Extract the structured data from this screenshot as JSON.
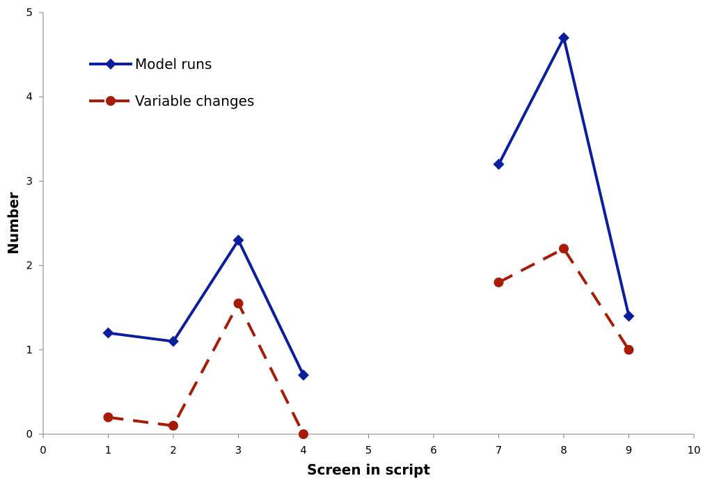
{
  "chart_data": {
    "type": "line",
    "title": "",
    "xlabel": "Screen in script",
    "ylabel": "Number",
    "xlim": [
      0,
      10
    ],
    "ylim": [
      0,
      5
    ],
    "x_ticks": [
      "0",
      "1",
      "2",
      "3",
      "4",
      "5",
      "6",
      "7",
      "8",
      "9",
      "10"
    ],
    "y_ticks": [
      "0",
      "1",
      "2",
      "3",
      "4",
      "5"
    ],
    "grid": false,
    "legend_position": "top-left",
    "series": [
      {
        "name": "Model runs",
        "color": "#0b1f9e",
        "marker": "diamond",
        "line_style": "solid",
        "segments": [
          [
            {
              "x": 1,
              "y": 1.2
            },
            {
              "x": 2,
              "y": 1.1
            },
            {
              "x": 3,
              "y": 2.3
            },
            {
              "x": 4,
              "y": 0.7
            }
          ],
          [
            {
              "x": 7,
              "y": 3.2
            },
            {
              "x": 8,
              "y": 4.7
            },
            {
              "x": 9,
              "y": 1.4
            }
          ]
        ]
      },
      {
        "name": "Variable changes",
        "color": "#a81c07",
        "marker": "circle",
        "line_style": "dashed",
        "segments": [
          [
            {
              "x": 1,
              "y": 0.2
            },
            {
              "x": 2,
              "y": 0.1
            },
            {
              "x": 3,
              "y": 1.55
            },
            {
              "x": 4,
              "y": 0.0
            }
          ],
          [
            {
              "x": 7,
              "y": 1.8
            },
            {
              "x": 8,
              "y": 2.2
            },
            {
              "x": 9,
              "y": 1.0
            }
          ]
        ]
      }
    ]
  }
}
